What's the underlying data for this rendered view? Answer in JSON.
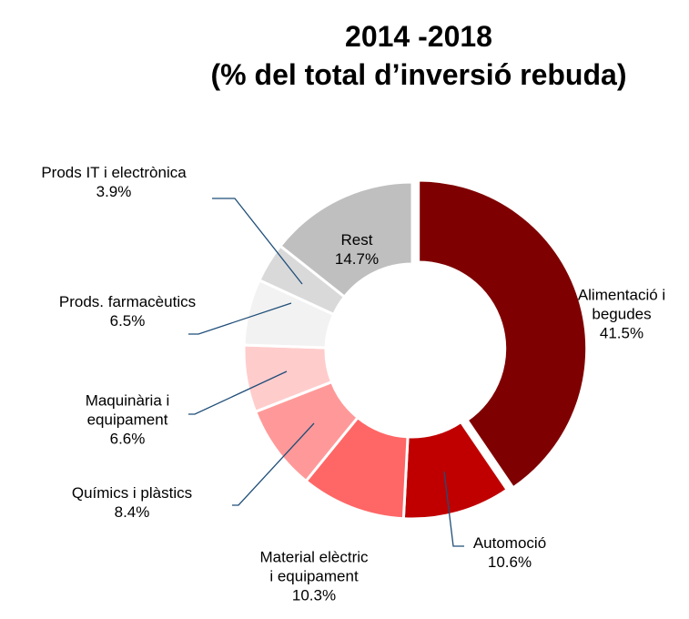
{
  "chart_data": {
    "type": "donut",
    "title": "2014 -2018",
    "subtitle": "(% del total d’inversió rebuda)",
    "categories": [
      "Alimentació i begudes",
      "Automoció",
      "Material elèctric i equipament",
      "Químics i plàstics",
      "Maquinària i equipament",
      "Prods. farmacèutics",
      "Prods IT i electrònica",
      "Rest"
    ],
    "values": [
      41.5,
      10.6,
      10.3,
      8.4,
      6.6,
      6.5,
      3.9,
      14.7
    ],
    "value_labels": [
      "41.5%",
      "10.6%",
      "10.3%",
      "8.4%",
      "6.6%",
      "6.5%",
      "3.9%",
      "14.7%"
    ],
    "colors": [
      "#7f0000",
      "#c00000",
      "#ff6666",
      "#ff9999",
      "#ffcccc",
      "#f2f2f2",
      "#d9d9d9",
      "#bfbfbf"
    ]
  }
}
